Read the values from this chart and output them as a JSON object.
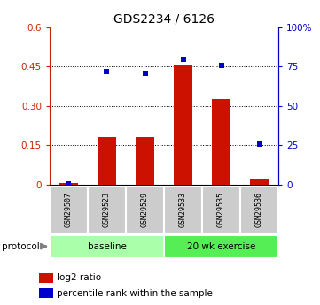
{
  "title": "GDS2234 / 6126",
  "samples": [
    "GSM29507",
    "GSM29523",
    "GSM29529",
    "GSM29533",
    "GSM29535",
    "GSM29536"
  ],
  "log2_ratio": [
    0.005,
    0.18,
    0.18,
    0.455,
    0.325,
    0.02
  ],
  "percentile_rank": [
    0.5,
    72.0,
    71.0,
    80.0,
    76.0,
    26.0
  ],
  "protocol_groups": [
    {
      "label": "baseline",
      "indices": [
        0,
        1,
        2
      ],
      "color": "#aaffaa"
    },
    {
      "label": "20 wk exercise",
      "indices": [
        3,
        4,
        5
      ],
      "color": "#55ee55"
    }
  ],
  "left_ylim": [
    0,
    0.6
  ],
  "right_ylim": [
    0,
    100
  ],
  "left_yticks": [
    0,
    0.15,
    0.3,
    0.45,
    0.6
  ],
  "right_yticks": [
    0,
    25,
    50,
    75,
    100
  ],
  "left_ytick_labels": [
    "0",
    "0.15",
    "0.30",
    "0.45",
    "0.6"
  ],
  "right_ytick_labels": [
    "0",
    "25",
    "50",
    "75",
    "100%"
  ],
  "bar_color": "#cc1100",
  "dot_color": "#0000cc",
  "bar_width": 0.5,
  "legend_items": [
    "log2 ratio",
    "percentile rank within the sample"
  ],
  "protocol_label": "protocol",
  "left_axis_color": "#cc2200",
  "right_axis_color": "#0000cc",
  "dotted_gridlines": [
    0.15,
    0.3,
    0.45
  ],
  "sample_box_color": "#cccccc",
  "baseline_color": "#bbffbb",
  "exercise_color": "#55ee55"
}
